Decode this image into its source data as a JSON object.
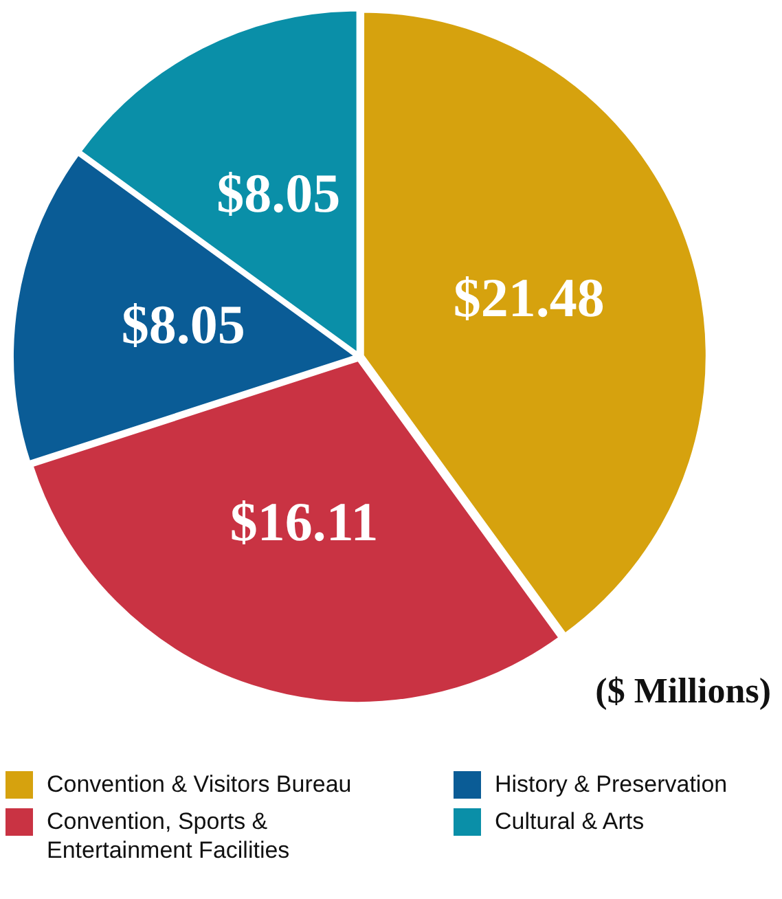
{
  "chart_data": {
    "type": "pie",
    "categories": [
      "Convention & Visitors Bureau",
      "Convention, Sports & Entertainment Facilities",
      "History & Preservation",
      "Cultural & Arts"
    ],
    "values": [
      21.48,
      16.11,
      8.05,
      8.05
    ],
    "value_labels": [
      "$21.48",
      "$16.11",
      "$8.05",
      "$8.05"
    ],
    "colors": [
      "#d6a20e",
      "#c93343",
      "#0a5c96",
      "#0a8fa8"
    ],
    "annotations": [
      "($ Millions)"
    ],
    "legend": "bottom"
  }
}
